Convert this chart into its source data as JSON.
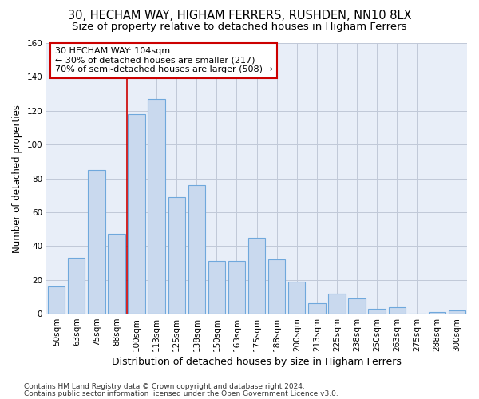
{
  "title1": "30, HECHAM WAY, HIGHAM FERRERS, RUSHDEN, NN10 8LX",
  "title2": "Size of property relative to detached houses in Higham Ferrers",
  "xlabel": "Distribution of detached houses by size in Higham Ferrers",
  "ylabel": "Number of detached properties",
  "categories": [
    "50sqm",
    "63sqm",
    "75sqm",
    "88sqm",
    "100sqm",
    "113sqm",
    "125sqm",
    "138sqm",
    "150sqm",
    "163sqm",
    "175sqm",
    "188sqm",
    "200sqm",
    "213sqm",
    "225sqm",
    "238sqm",
    "250sqm",
    "263sqm",
    "275sqm",
    "288sqm",
    "300sqm"
  ],
  "values": [
    16,
    33,
    85,
    47,
    118,
    127,
    69,
    76,
    31,
    31,
    45,
    32,
    19,
    6,
    12,
    9,
    3,
    4,
    0,
    1,
    2
  ],
  "bar_color": "#c9d9ee",
  "bar_edge_color": "#6fa8dc",
  "bar_width": 0.85,
  "vline_x_index": 4,
  "vline_color": "#cc0000",
  "annotation_line1": "30 HECHAM WAY: 104sqm",
  "annotation_line2": "← 30% of detached houses are smaller (217)",
  "annotation_line3": "70% of semi-detached houses are larger (508) →",
  "annotation_box_color": "white",
  "annotation_box_edge_color": "#cc0000",
  "ylim": [
    0,
    160
  ],
  "yticks": [
    0,
    20,
    40,
    60,
    80,
    100,
    120,
    140,
    160
  ],
  "grid_color": "#c0c8d8",
  "footer1": "Contains HM Land Registry data © Crown copyright and database right 2024.",
  "footer2": "Contains public sector information licensed under the Open Government Licence v3.0.",
  "bg_color": "#e8eef8",
  "title1_fontsize": 10.5,
  "title2_fontsize": 9.5,
  "xlabel_fontsize": 9,
  "ylabel_fontsize": 8.5,
  "tick_fontsize": 7.5,
  "annotation_fontsize": 8,
  "footer_fontsize": 6.5
}
